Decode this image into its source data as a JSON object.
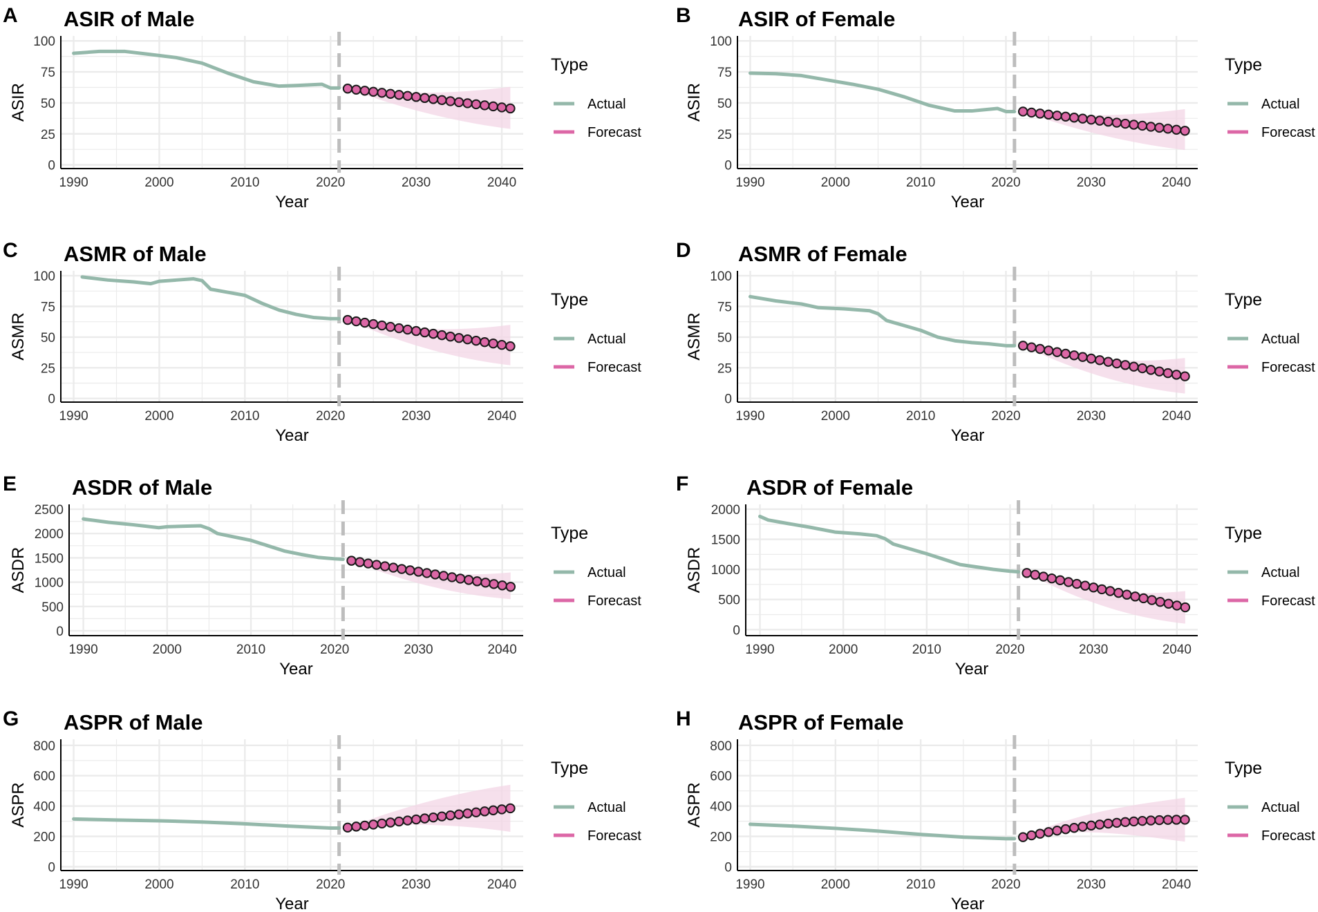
{
  "colors": {
    "actual": "#94b8aa",
    "forecast_fill": "#dc67a6",
    "forecast_band": "#f3d6e6",
    "point_stroke": "#1a1a1a",
    "grid": "#ebebeb",
    "vline": "#bdbdbd"
  },
  "chart_data": [
    {
      "letter": "A",
      "type": "line",
      "title": "ASIR of Male",
      "xlabel": "Year",
      "ylabel": "ASIR",
      "xlim": [
        1988.5,
        2042.5
      ],
      "ylim": [
        -3,
        104
      ],
      "xticks": [
        1990,
        2000,
        2010,
        2020,
        2030,
        2040
      ],
      "yticks": [
        0,
        25,
        50,
        75,
        100
      ],
      "vline": 2021,
      "legend": {
        "title": "Type",
        "entries": [
          "Actual",
          "Forecast"
        ]
      },
      "actual": {
        "x": [
          1990,
          1993,
          1996,
          1999,
          2002,
          2005,
          2008,
          2011,
          2014,
          2016,
          2019,
          2020,
          2021
        ],
        "y": [
          90,
          91.5,
          91.5,
          89,
          86.5,
          82,
          74,
          67,
          63.5,
          64,
          65,
          62,
          62
        ]
      },
      "forecast": {
        "start": 2022,
        "end": 2041,
        "y0": 61.5,
        "y1": 45.5,
        "lo_end": 29,
        "hi_end": 63
      }
    },
    {
      "letter": "B",
      "type": "line",
      "title": "ASIR of Female",
      "xlabel": "Year",
      "ylabel": "ASIR",
      "xlim": [
        1988.5,
        2042.5
      ],
      "ylim": [
        -3,
        104
      ],
      "xticks": [
        1990,
        2000,
        2010,
        2020,
        2030,
        2040
      ],
      "yticks": [
        0,
        25,
        50,
        75,
        100
      ],
      "vline": 2021,
      "legend": {
        "title": "Type",
        "entries": [
          "Actual",
          "Forecast"
        ]
      },
      "actual": {
        "x": [
          1990,
          1993,
          1996,
          1999,
          2002,
          2005,
          2008,
          2011,
          2014,
          2016,
          2019,
          2020,
          2021
        ],
        "y": [
          74,
          73.5,
          72,
          68.5,
          65,
          61,
          55,
          48,
          43.5,
          43.5,
          45.5,
          43,
          43
        ]
      },
      "forecast": {
        "start": 2022,
        "end": 2041,
        "y0": 43,
        "y1": 27.5,
        "lo_end": 12,
        "hi_end": 45
      }
    },
    {
      "letter": "C",
      "type": "line",
      "title": "ASMR of Male",
      "xlabel": "Year",
      "ylabel": "ASMR",
      "xlim": [
        1988.5,
        2042.5
      ],
      "ylim": [
        -3,
        104
      ],
      "xticks": [
        1990,
        2000,
        2010,
        2020,
        2030,
        2040
      ],
      "yticks": [
        0,
        25,
        50,
        75,
        100
      ],
      "vline": 2021,
      "legend": {
        "title": "Type",
        "entries": [
          "Actual",
          "Forecast"
        ]
      },
      "actual": {
        "x": [
          1991,
          1994,
          1997,
          1999,
          2000,
          2002,
          2004,
          2005,
          2006,
          2008,
          2010,
          2012,
          2014,
          2016,
          2018,
          2020,
          2021
        ],
        "y": [
          99,
          96.5,
          95,
          93.5,
          95.5,
          96.5,
          97.5,
          96,
          89,
          86.5,
          84,
          77.5,
          72,
          68.5,
          66,
          65,
          65
        ]
      },
      "forecast": {
        "start": 2022,
        "end": 2041,
        "y0": 64,
        "y1": 42.5,
        "lo_end": 27,
        "hi_end": 60
      }
    },
    {
      "letter": "D",
      "type": "line",
      "title": "ASMR of Female",
      "xlabel": "Year",
      "ylabel": "ASMR",
      "xlim": [
        1988.5,
        2042.5
      ],
      "ylim": [
        -3,
        104
      ],
      "xticks": [
        1990,
        2000,
        2010,
        2020,
        2030,
        2040
      ],
      "yticks": [
        0,
        25,
        50,
        75,
        100
      ],
      "vline": 2021,
      "legend": {
        "title": "Type",
        "entries": [
          "Actual",
          "Forecast"
        ]
      },
      "actual": {
        "x": [
          1990,
          1993,
          1996,
          1998,
          2001,
          2004,
          2005,
          2006,
          2008,
          2010,
          2012,
          2014,
          2016,
          2018,
          2020,
          2021
        ],
        "y": [
          83,
          79.5,
          77,
          74,
          73,
          71.5,
          69,
          63.5,
          59.5,
          55.5,
          50,
          47,
          45.5,
          44.5,
          43,
          43
        ]
      },
      "forecast": {
        "start": 2022,
        "end": 2041,
        "y0": 43,
        "y1": 18,
        "lo_end": 4,
        "hi_end": 33
      }
    },
    {
      "letter": "E",
      "type": "line",
      "title": "ASDR of Male",
      "xlabel": "Year",
      "ylabel": "ASDR",
      "xlim": [
        1988.3,
        2042.5
      ],
      "ylim": [
        -100,
        2600
      ],
      "xticks": [
        1990,
        2000,
        2010,
        2020,
        2030,
        2040
      ],
      "yticks": [
        0,
        500,
        1000,
        1500,
        2000,
        2500
      ],
      "vline": 2021,
      "legend": {
        "title": "Type",
        "entries": [
          "Actual",
          "Forecast"
        ]
      },
      "actual": {
        "x": [
          1990,
          1993,
          1996,
          1999,
          2000,
          2002,
          2004,
          2005,
          2006,
          2008,
          2010,
          2012,
          2014,
          2016,
          2018,
          2020,
          2021
        ],
        "y": [
          2300,
          2230,
          2180,
          2120,
          2140,
          2150,
          2160,
          2100,
          2000,
          1930,
          1860,
          1750,
          1640,
          1570,
          1510,
          1480,
          1470
        ]
      },
      "forecast": {
        "start": 2022,
        "end": 2041,
        "y0": 1440,
        "y1": 905,
        "lo_end": 650,
        "hi_end": 1200
      }
    },
    {
      "letter": "F",
      "type": "line",
      "title": "ASDR of Female",
      "xlabel": "Year",
      "ylabel": "ASDR",
      "xlim": [
        1988.3,
        2042.5
      ],
      "ylim": [
        -100,
        2080
      ],
      "xticks": [
        1990,
        2000,
        2010,
        2020,
        2030,
        2040
      ],
      "yticks": [
        0,
        500,
        1000,
        1500,
        2000
      ],
      "vline": 2021,
      "legend": {
        "title": "Type",
        "entries": [
          "Actual",
          "Forecast"
        ]
      },
      "actual": {
        "x": [
          1990,
          1991,
          1993,
          1996,
          1999,
          2002,
          2004,
          2005,
          2006,
          2008,
          2010,
          2012,
          2014,
          2016,
          2018,
          2020,
          2021
        ],
        "y": [
          1880,
          1820,
          1770,
          1700,
          1620,
          1590,
          1560,
          1510,
          1420,
          1340,
          1260,
          1170,
          1080,
          1040,
          1000,
          970,
          960
        ]
      },
      "forecast": {
        "start": 2022,
        "end": 2041,
        "y0": 940,
        "y1": 370,
        "lo_end": 100,
        "hi_end": 640
      }
    },
    {
      "letter": "G",
      "type": "line",
      "title": "ASPR of Male",
      "xlabel": "Year",
      "ylabel": "ASPR",
      "xlim": [
        1988.5,
        2042.5
      ],
      "ylim": [
        -25,
        840
      ],
      "xticks": [
        1990,
        2000,
        2010,
        2020,
        2030,
        2040
      ],
      "yticks": [
        0,
        200,
        400,
        600,
        800
      ],
      "vline": 2021,
      "legend": {
        "title": "Type",
        "entries": [
          "Actual",
          "Forecast"
        ]
      },
      "actual": {
        "x": [
          1990,
          1995,
          2000,
          2005,
          2010,
          2015,
          2020,
          2021
        ],
        "y": [
          315,
          308,
          303,
          295,
          283,
          268,
          255,
          255
        ]
      },
      "forecast": {
        "start": 2022,
        "end": 2041,
        "y0": 258,
        "y1": 385,
        "lo_end": 230,
        "hi_end": 540
      }
    },
    {
      "letter": "H",
      "type": "line",
      "title": "ASPR of Female",
      "xlabel": "Year",
      "ylabel": "ASPR",
      "xlim": [
        1988.5,
        2042.5
      ],
      "ylim": [
        -25,
        840
      ],
      "xticks": [
        1990,
        2000,
        2010,
        2020,
        2030,
        2040
      ],
      "yticks": [
        0,
        200,
        400,
        600,
        800
      ],
      "vline": 2021,
      "legend": {
        "title": "Type",
        "entries": [
          "Actual",
          "Forecast"
        ]
      },
      "actual": {
        "x": [
          1990,
          1995,
          2000,
          2005,
          2010,
          2015,
          2020,
          2021
        ],
        "y": [
          280,
          268,
          253,
          235,
          213,
          195,
          185,
          185
        ]
      },
      "forecast": {
        "start": 2022,
        "end": 2041,
        "y0": 195,
        "y1": 310,
        "curve": "concave",
        "lo_end": 165,
        "hi_end": 455
      }
    }
  ]
}
